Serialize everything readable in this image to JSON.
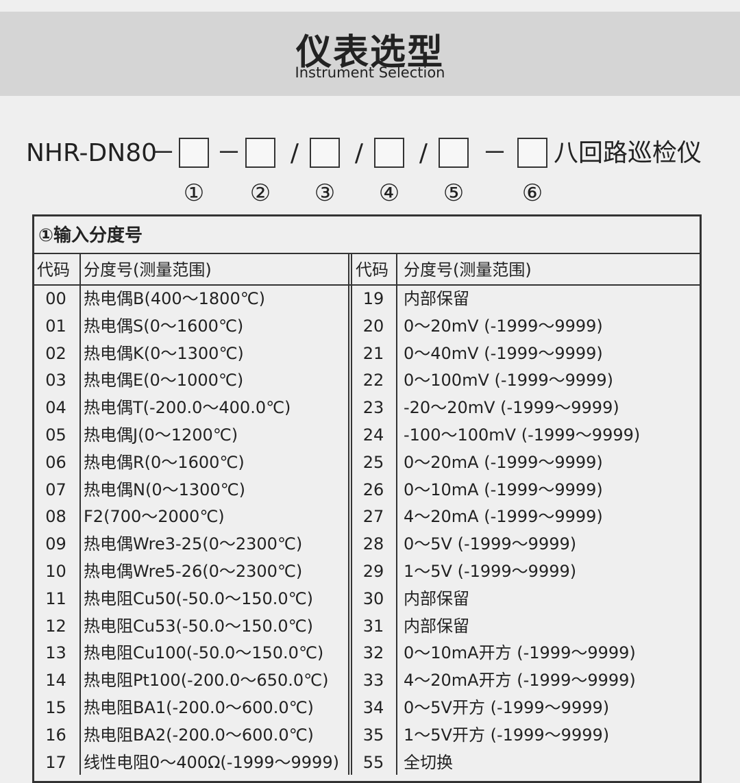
{
  "header": {
    "title": "仪表选型",
    "subtitle": "Instrument Selection"
  },
  "model": {
    "prefix": "NHR-DN80",
    "separators": [
      "－",
      "－",
      "/",
      "/",
      "/",
      "－"
    ],
    "suffix": "八回路巡检仪",
    "positions": [
      "①",
      "②",
      "③",
      "④",
      "⑤",
      "⑥"
    ]
  },
  "table": {
    "title": "①输入分度号",
    "headers": [
      "代码",
      "分度号(测量范围)",
      "代码",
      "分度号(测量范围)"
    ],
    "left": [
      [
        "00",
        "热电偶B(400～1800℃)"
      ],
      [
        "01",
        "热电偶S(0～1600℃)"
      ],
      [
        "02",
        "热电偶K(0～1300℃)"
      ],
      [
        "03",
        "热电偶E(0～1000℃)"
      ],
      [
        "04",
        "热电偶T(-200.0～400.0℃)"
      ],
      [
        "05",
        "热电偶J(0～1200℃)"
      ],
      [
        "06",
        "热电偶R(0～1600℃)"
      ],
      [
        "07",
        "热电偶N(0～1300℃)"
      ],
      [
        "08",
        "F2(700～2000℃)"
      ],
      [
        "09",
        "热电偶Wre3-25(0～2300℃)"
      ],
      [
        "10",
        "热电偶Wre5-26(0～2300℃)"
      ],
      [
        "11",
        "热电阻Cu50(-50.0～150.0℃)"
      ],
      [
        "12",
        "热电阻Cu53(-50.0～150.0℃)"
      ],
      [
        "13",
        "热电阻Cu100(-50.0～150.0℃)"
      ],
      [
        "14",
        "热电阻Pt100(-200.0～650.0℃)"
      ],
      [
        "15",
        "热电阻BA1(-200.0～600.0℃)"
      ],
      [
        "16",
        "热电阻BA2(-200.0～600.0℃)"
      ],
      [
        "17",
        "线性电阻0～400Ω(-1999～9999)"
      ]
    ],
    "right": [
      [
        "19",
        "内部保留"
      ],
      [
        "20",
        "0～20mV (-1999～9999)"
      ],
      [
        "21",
        "0～40mV (-1999～9999)"
      ],
      [
        "22",
        "0～100mV (-1999～9999)"
      ],
      [
        "23",
        "-20～20mV (-1999～9999)"
      ],
      [
        "24",
        "-100～100mV (-1999～9999)"
      ],
      [
        "25",
        "0～20mA (-1999～9999)"
      ],
      [
        "26",
        "0～10mA (-1999～9999)"
      ],
      [
        "27",
        "4～20mA (-1999～9999)"
      ],
      [
        "28",
        "0～5V (-1999～9999)"
      ],
      [
        "29",
        "1～5V (-1999～9999)"
      ],
      [
        "30",
        "内部保留"
      ],
      [
        "31",
        "内部保留"
      ],
      [
        "32",
        "0～10mA开方 (-1999～9999)"
      ],
      [
        "33",
        "4～20mA开方 (-1999～9999)"
      ],
      [
        "34",
        "0～5V开方 (-1999～9999)"
      ],
      [
        "35",
        "1～5V开方 (-1999～9999)"
      ],
      [
        "55",
        "全切换"
      ]
    ]
  }
}
